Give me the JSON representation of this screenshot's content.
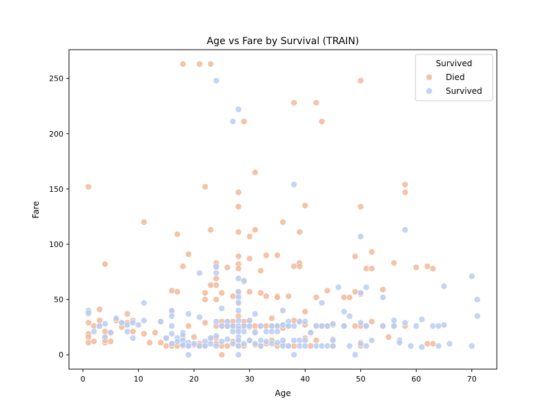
{
  "chart_data": {
    "type": "scatter",
    "title": "Age vs Fare by Survival (TRAIN)",
    "xlabel": "Age",
    "ylabel": "Fare",
    "xlim": [
      -2.5,
      74.5
    ],
    "ylim": [
      -13,
      276
    ],
    "xticks": [
      0,
      10,
      20,
      30,
      40,
      50,
      60,
      70
    ],
    "yticks": [
      0,
      50,
      100,
      150,
      200,
      250
    ],
    "grid": false,
    "legend": {
      "title": "Survived",
      "placement": "top-right"
    },
    "series": [
      {
        "name": "Died",
        "color": "#f2b899",
        "points": [
          [
            1,
            152
          ],
          [
            1,
            29
          ],
          [
            1,
            19
          ],
          [
            1,
            16
          ],
          [
            1,
            37
          ],
          [
            1,
            11
          ],
          [
            2,
            12
          ],
          [
            2,
            26
          ],
          [
            3,
            41
          ],
          [
            3,
            31
          ],
          [
            3,
            26
          ],
          [
            4,
            82
          ],
          [
            4,
            21
          ],
          [
            4,
            15
          ],
          [
            4,
            11
          ],
          [
            4,
            13
          ],
          [
            5,
            20
          ],
          [
            5,
            12
          ],
          [
            6,
            31
          ],
          [
            7,
            29
          ],
          [
            7,
            25
          ],
          [
            8,
            37
          ],
          [
            8,
            29
          ],
          [
            9,
            21
          ],
          [
            9,
            31
          ],
          [
            11,
            120
          ],
          [
            11,
            19
          ],
          [
            12,
            11
          ],
          [
            13,
            20
          ],
          [
            14,
            30
          ],
          [
            14,
            11
          ],
          [
            15,
            15
          ],
          [
            15,
            8
          ],
          [
            16,
            58
          ],
          [
            16,
            39
          ],
          [
            16,
            10
          ],
          [
            16,
            8
          ],
          [
            17,
            109
          ],
          [
            17,
            57
          ],
          [
            17,
            8
          ],
          [
            18,
            263
          ],
          [
            18,
            80
          ],
          [
            18,
            15
          ],
          [
            18,
            8
          ],
          [
            19,
            91
          ],
          [
            19,
            26
          ],
          [
            19,
            8
          ],
          [
            20,
            16
          ],
          [
            20,
            9
          ],
          [
            21,
            263
          ],
          [
            21,
            10
          ],
          [
            21,
            8
          ],
          [
            22,
            152
          ],
          [
            22,
            56
          ],
          [
            22,
            50
          ],
          [
            22,
            29
          ],
          [
            22,
            9
          ],
          [
            23,
            263
          ],
          [
            23,
            113
          ],
          [
            23,
            63
          ],
          [
            23,
            15
          ],
          [
            24,
            83
          ],
          [
            24,
            79
          ],
          [
            24,
            69
          ],
          [
            24,
            63
          ],
          [
            24,
            50
          ],
          [
            24,
            26
          ],
          [
            24,
            15
          ],
          [
            24,
            10
          ],
          [
            25,
            56
          ],
          [
            25,
            30
          ],
          [
            25,
            26
          ],
          [
            25,
            0
          ],
          [
            25,
            8
          ],
          [
            26,
            79
          ],
          [
            26,
            30
          ],
          [
            26,
            26
          ],
          [
            26,
            8
          ],
          [
            27,
            53
          ],
          [
            27,
            30
          ],
          [
            27,
            26
          ],
          [
            27,
            12
          ],
          [
            28,
            147
          ],
          [
            28,
            134
          ],
          [
            28,
            111
          ],
          [
            28,
            89
          ],
          [
            28,
            82
          ],
          [
            28,
            78
          ],
          [
            28,
            57
          ],
          [
            28,
            54
          ],
          [
            28,
            47
          ],
          [
            28,
            35
          ],
          [
            28,
            26
          ],
          [
            28,
            14
          ],
          [
            28,
            8
          ],
          [
            29,
            211
          ],
          [
            29,
            66
          ],
          [
            29,
            30
          ],
          [
            29,
            26
          ],
          [
            29,
            8
          ],
          [
            30,
            107
          ],
          [
            30,
            87
          ],
          [
            30,
            57
          ],
          [
            30,
            31
          ],
          [
            30,
            25
          ],
          [
            30,
            13
          ],
          [
            31,
            165
          ],
          [
            31,
            113
          ],
          [
            31,
            26
          ],
          [
            31,
            21
          ],
          [
            31,
            9
          ],
          [
            32,
            76
          ],
          [
            32,
            56
          ],
          [
            32,
            26
          ],
          [
            32,
            8
          ],
          [
            33,
            90
          ],
          [
            33,
            53
          ],
          [
            33,
            26
          ],
          [
            33,
            10
          ],
          [
            34,
            26
          ],
          [
            34,
            13
          ],
          [
            34,
            33
          ],
          [
            35,
            90
          ],
          [
            35,
            53
          ],
          [
            35,
            52
          ],
          [
            35,
            26
          ],
          [
            35,
            8
          ],
          [
            36,
            120
          ],
          [
            36,
            26
          ],
          [
            36,
            24
          ],
          [
            36,
            10
          ],
          [
            37,
            53
          ],
          [
            37,
            26
          ],
          [
            37,
            8
          ],
          [
            38,
            228
          ],
          [
            38,
            80
          ],
          [
            38,
            31
          ],
          [
            38,
            8
          ],
          [
            39,
            111
          ],
          [
            39,
            83
          ],
          [
            39,
            80
          ],
          [
            39,
            30
          ],
          [
            40,
            135
          ],
          [
            40,
            39
          ],
          [
            40,
            27
          ],
          [
            40,
            15
          ],
          [
            41,
            20
          ],
          [
            41,
            8
          ],
          [
            42,
            228
          ],
          [
            42,
            52
          ],
          [
            42,
            13
          ],
          [
            42,
            26
          ],
          [
            43,
            211
          ],
          [
            43,
            26
          ],
          [
            44,
            58
          ],
          [
            44,
            26
          ],
          [
            45,
            27
          ],
          [
            45,
            14
          ],
          [
            45,
            8
          ],
          [
            47,
            52
          ],
          [
            47,
            26
          ],
          [
            48,
            52
          ],
          [
            49,
            89
          ],
          [
            49,
            57
          ],
          [
            49,
            26
          ],
          [
            50,
            248
          ],
          [
            50,
            134
          ],
          [
            50,
            55
          ],
          [
            50,
            26
          ],
          [
            50,
            11
          ],
          [
            50,
            8
          ],
          [
            51,
            78
          ],
          [
            51,
            26
          ],
          [
            52,
            93
          ],
          [
            52,
            78
          ],
          [
            52,
            30
          ],
          [
            54,
            59
          ],
          [
            54,
            26
          ],
          [
            55,
            16
          ],
          [
            56,
            83
          ],
          [
            56,
            26
          ],
          [
            58,
            154
          ],
          [
            58,
            147
          ],
          [
            58,
            26
          ],
          [
            60,
            79
          ],
          [
            62,
            80
          ],
          [
            62,
            10
          ],
          [
            63,
            78
          ],
          [
            63,
            10
          ]
        ]
      },
      {
        "name": "Survived",
        "color": "#b8ccf2",
        "points": [
          [
            1,
            40
          ],
          [
            1,
            38
          ],
          [
            2,
            21
          ],
          [
            3,
            26
          ],
          [
            4,
            28
          ],
          [
            4,
            16
          ],
          [
            5,
            20
          ],
          [
            6,
            33
          ],
          [
            7,
            29
          ],
          [
            8,
            27
          ],
          [
            8,
            21
          ],
          [
            9,
            29
          ],
          [
            9,
            15
          ],
          [
            10,
            27
          ],
          [
            11,
            47
          ],
          [
            11,
            31
          ],
          [
            14,
            30
          ],
          [
            15,
            15
          ],
          [
            16,
            40
          ],
          [
            16,
            35
          ],
          [
            16,
            26
          ],
          [
            16,
            19
          ],
          [
            16,
            10
          ],
          [
            17,
            15
          ],
          [
            17,
            12
          ],
          [
            18,
            20
          ],
          [
            18,
            18
          ],
          [
            18,
            13
          ],
          [
            18,
            9
          ],
          [
            19,
            37
          ],
          [
            19,
            11
          ],
          [
            19,
            8
          ],
          [
            19,
            0
          ],
          [
            20,
            10
          ],
          [
            21,
            74
          ],
          [
            21,
            34
          ],
          [
            21,
            8
          ],
          [
            22,
            12
          ],
          [
            22,
            8
          ],
          [
            23,
            15
          ],
          [
            23,
            10
          ],
          [
            24,
            248
          ],
          [
            24,
            80
          ],
          [
            24,
            74
          ],
          [
            24,
            30
          ],
          [
            24,
            17
          ],
          [
            24,
            8
          ],
          [
            25,
            42
          ],
          [
            25,
            26
          ],
          [
            25,
            12
          ],
          [
            26,
            30
          ],
          [
            26,
            26
          ],
          [
            26,
            14
          ],
          [
            27,
            211
          ],
          [
            27,
            26
          ],
          [
            27,
            21
          ],
          [
            27,
            10
          ],
          [
            28,
            222
          ],
          [
            28,
            69
          ],
          [
            28,
            57
          ],
          [
            28,
            52
          ],
          [
            28,
            47
          ],
          [
            28,
            40
          ],
          [
            28,
            31
          ],
          [
            28,
            26
          ],
          [
            28,
            24
          ],
          [
            28,
            21
          ],
          [
            28,
            16
          ],
          [
            28,
            13
          ],
          [
            28,
            8
          ],
          [
            28,
            0
          ],
          [
            29,
            67
          ],
          [
            29,
            26
          ],
          [
            29,
            21
          ],
          [
            29,
            10
          ],
          [
            30,
            31
          ],
          [
            30,
            26
          ],
          [
            30,
            13
          ],
          [
            31,
            37
          ],
          [
            31,
            20
          ],
          [
            31,
            10
          ],
          [
            32,
            26
          ],
          [
            32,
            13
          ],
          [
            32,
            8
          ],
          [
            33,
            21
          ],
          [
            33,
            12
          ],
          [
            34,
            26
          ],
          [
            34,
            21
          ],
          [
            34,
            10
          ],
          [
            35,
            26
          ],
          [
            35,
            21
          ],
          [
            35,
            11
          ],
          [
            36,
            40
          ],
          [
            36,
            27
          ],
          [
            36,
            13
          ],
          [
            36,
            8
          ],
          [
            37,
            30
          ],
          [
            37,
            26
          ],
          [
            37,
            8
          ],
          [
            38,
            154
          ],
          [
            38,
            26
          ],
          [
            38,
            13
          ],
          [
            38,
            0
          ],
          [
            39,
            30
          ],
          [
            39,
            13
          ],
          [
            39,
            8
          ],
          [
            40,
            30
          ],
          [
            40,
            13
          ],
          [
            40,
            8
          ],
          [
            41,
            20
          ],
          [
            42,
            26
          ],
          [
            42,
            8
          ],
          [
            43,
            47
          ],
          [
            43,
            26
          ],
          [
            43,
            8
          ],
          [
            44,
            26
          ],
          [
            44,
            8
          ],
          [
            45,
            28
          ],
          [
            45,
            13
          ],
          [
            45,
            8
          ],
          [
            46,
            61
          ],
          [
            47,
            39
          ],
          [
            47,
            26
          ],
          [
            48,
            35
          ],
          [
            48,
            8
          ],
          [
            49,
            0
          ],
          [
            50,
            107
          ],
          [
            50,
            29
          ],
          [
            50,
            56
          ],
          [
            50,
            10
          ],
          [
            51,
            61
          ],
          [
            51,
            26
          ],
          [
            51,
            8
          ],
          [
            52,
            13
          ],
          [
            54,
            52
          ],
          [
            54,
            26
          ],
          [
            56,
            31
          ],
          [
            56,
            26
          ],
          [
            57,
            13
          ],
          [
            57,
            11
          ],
          [
            58,
            113
          ],
          [
            58,
            29
          ],
          [
            59,
            8
          ],
          [
            60,
            26
          ],
          [
            61,
            32
          ],
          [
            61,
            7
          ],
          [
            63,
            26
          ],
          [
            64,
            26
          ],
          [
            64,
            8
          ],
          [
            65,
            62
          ],
          [
            65,
            27
          ],
          [
            66,
            10
          ],
          [
            70,
            71
          ],
          [
            70,
            8
          ],
          [
            71,
            50
          ],
          [
            71,
            35
          ]
        ]
      }
    ]
  }
}
